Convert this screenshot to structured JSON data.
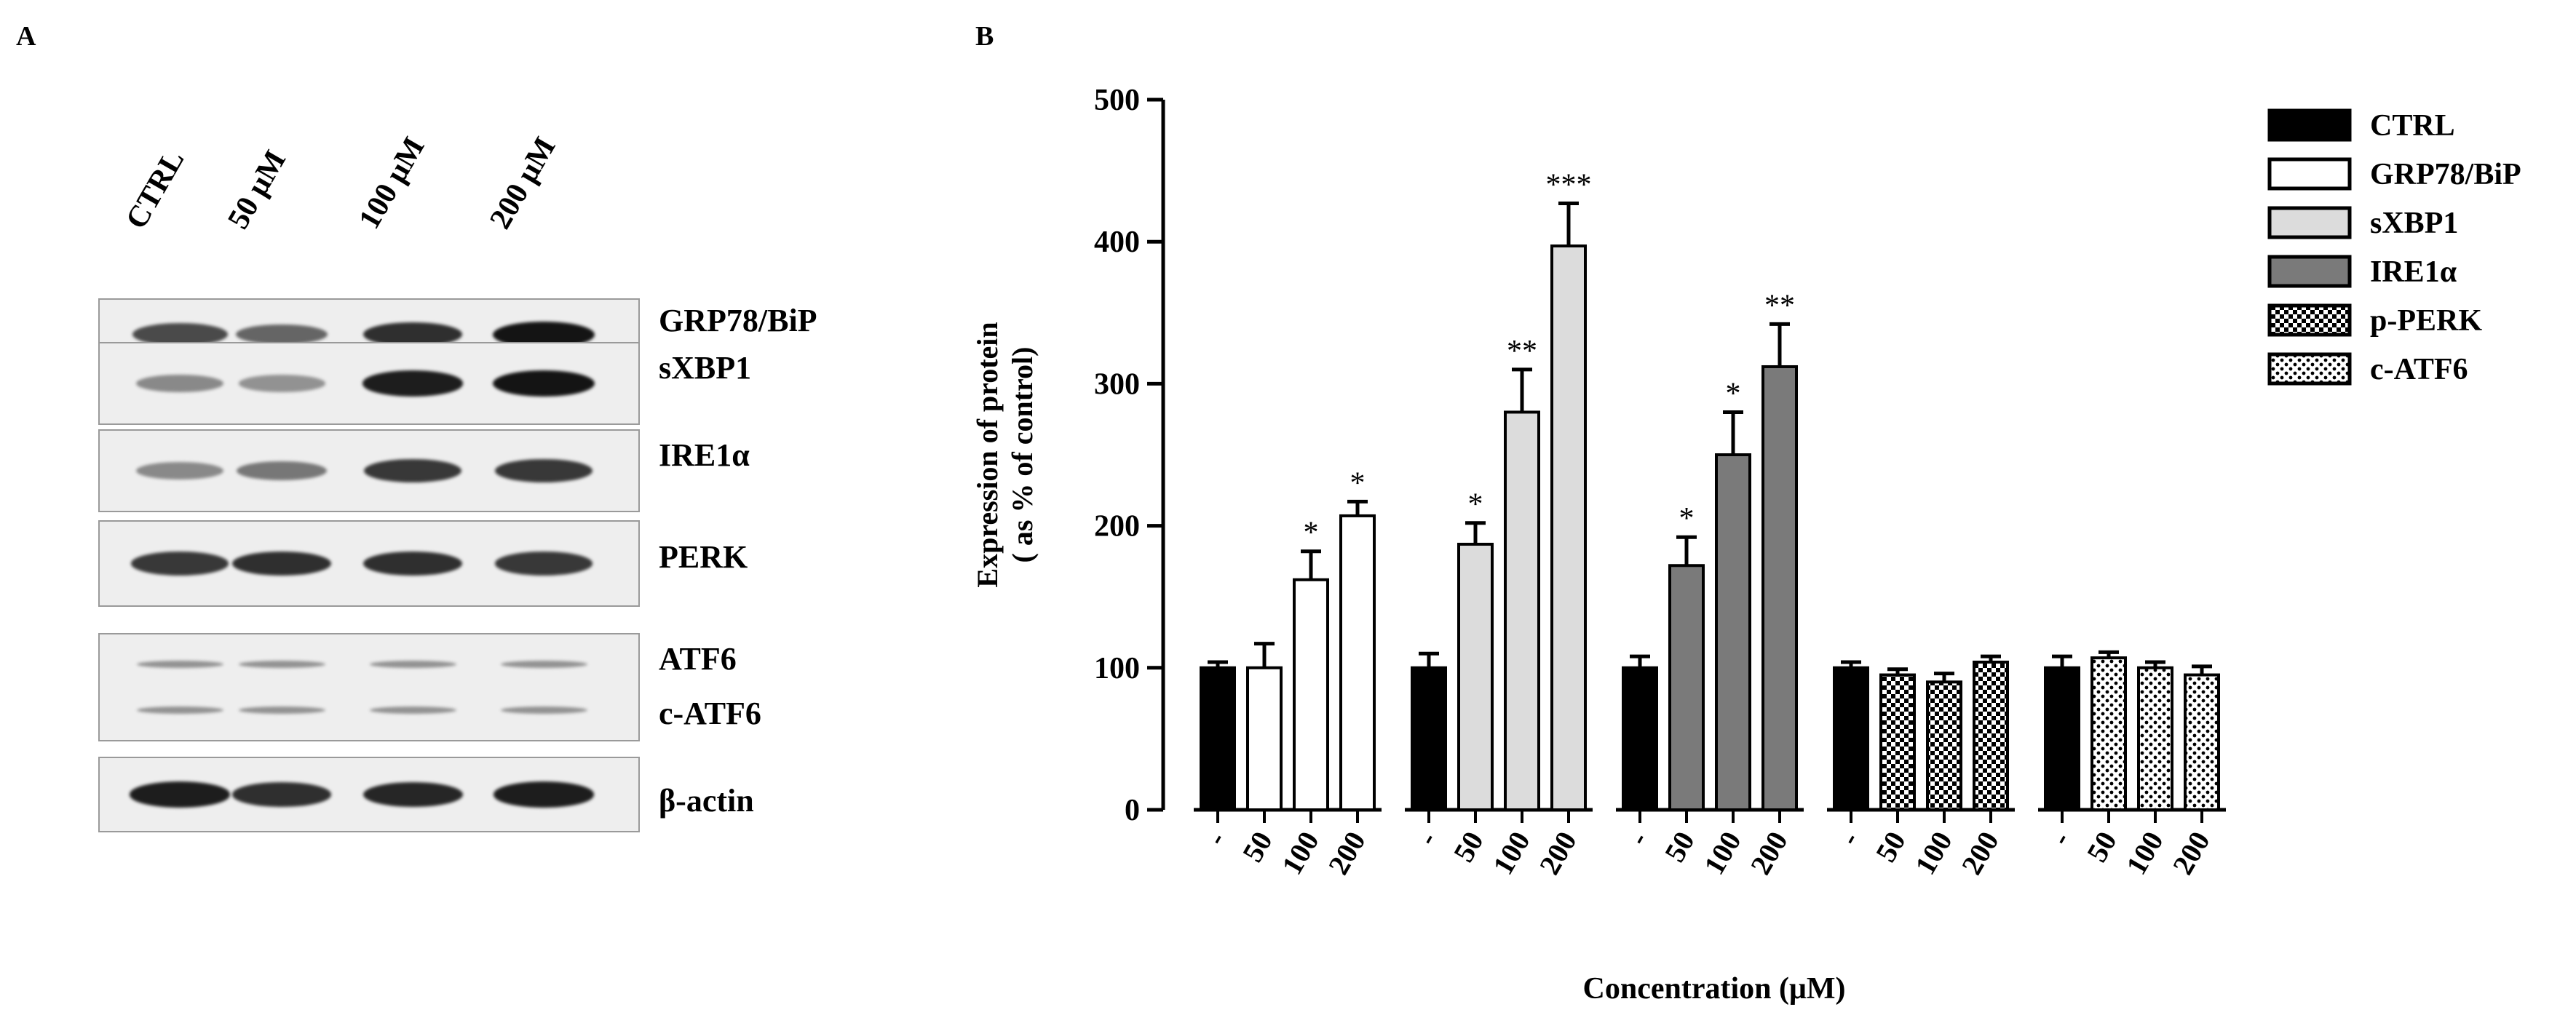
{
  "panel_a": {
    "label": "A",
    "lanes": [
      "CTRL",
      "50 μM",
      "100 μM",
      "200 μM"
    ],
    "blots": [
      {
        "label": "GRP78/BiP",
        "intensities": [
          0.7,
          0.55,
          0.85,
          1.0
        ]
      },
      {
        "label": "sXBP1",
        "intensities": [
          0.35,
          0.3,
          0.95,
          1.0
        ]
      },
      {
        "label": "IRE1α",
        "intensities": [
          0.35,
          0.45,
          0.8,
          0.8
        ]
      },
      {
        "label": "PERK",
        "intensities": [
          0.8,
          0.85,
          0.85,
          0.8
        ]
      },
      {
        "label": "ATF6",
        "label2": "c-ATF6",
        "intensities": [
          0.3,
          0.3,
          0.3,
          0.3
        ]
      },
      {
        "label": "β-actin",
        "intensities": [
          0.95,
          0.85,
          0.9,
          0.95
        ]
      }
    ]
  },
  "panel_b": {
    "label": "B"
  },
  "chart_data": {
    "type": "bar",
    "xlabel": "Concentration (μM)",
    "ylabel": "Expression of protein\n( as % of control)",
    "ylim": [
      0,
      500
    ],
    "yticks": [
      0,
      100,
      200,
      300,
      400,
      500
    ],
    "categories": [
      "-",
      "50",
      "100",
      "200"
    ],
    "groups": [
      {
        "series": "GRP78/BiP",
        "values": [
          100,
          100,
          162,
          207
        ],
        "errors": [
          4,
          17,
          20,
          10
        ],
        "annotations": [
          "",
          "",
          "*",
          "*"
        ]
      },
      {
        "series": "sXBP1",
        "values": [
          100,
          187,
          280,
          397
        ],
        "errors": [
          10,
          15,
          30,
          30
        ],
        "annotations": [
          "",
          "*",
          "**",
          "***"
        ]
      },
      {
        "series": "IRE1α",
        "values": [
          100,
          172,
          250,
          312
        ],
        "errors": [
          8,
          20,
          30,
          30
        ],
        "annotations": [
          "",
          "*",
          "*",
          "**"
        ]
      },
      {
        "series": "p-PERK",
        "values": [
          100,
          95,
          90,
          104
        ],
        "errors": [
          4,
          4,
          6,
          4
        ],
        "annotations": [
          "",
          "",
          "",
          ""
        ]
      },
      {
        "series": "c-ATF6",
        "values": [
          100,
          107,
          100,
          95
        ],
        "errors": [
          8,
          4,
          4,
          6
        ],
        "annotations": [
          "",
          "",
          "",
          ""
        ]
      }
    ],
    "legend": [
      {
        "name": "CTRL",
        "fill": "solid-black"
      },
      {
        "name": "GRP78/BiP",
        "fill": "white"
      },
      {
        "name": "sXBP1",
        "fill": "light-gray"
      },
      {
        "name": "IRE1α",
        "fill": "dark-gray"
      },
      {
        "name": "p-PERK",
        "fill": "checker"
      },
      {
        "name": "c-ATF6",
        "fill": "dots"
      }
    ],
    "legend_position": "right",
    "colors": {
      "ctrl": "#000000",
      "light_gray": "#dcdcdc",
      "dark_gray": "#7a7a7a",
      "white": "#ffffff"
    }
  }
}
